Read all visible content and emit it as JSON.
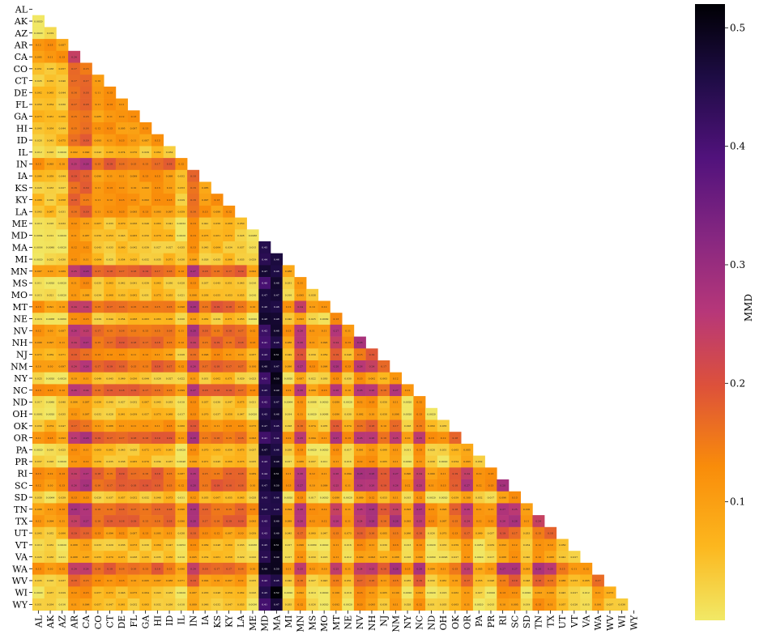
{
  "chart_data": {
    "type": "heatmap",
    "title": "",
    "xlabel": "",
    "ylabel": "",
    "states": [
      "AL",
      "AK",
      "AZ",
      "AR",
      "CA",
      "CO",
      "CT",
      "DE",
      "FL",
      "GA",
      "HI",
      "ID",
      "IL",
      "IN",
      "IA",
      "KS",
      "KY",
      "LA",
      "ME",
      "MD",
      "MA",
      "MI",
      "MN",
      "MS",
      "MO",
      "MT",
      "NE",
      "NV",
      "NH",
      "NJ",
      "NM",
      "NY",
      "NC",
      "ND",
      "OH",
      "OK",
      "OR",
      "PA",
      "PR",
      "RI",
      "SC",
      "SD",
      "TN",
      "TX",
      "UT",
      "VT",
      "VA",
      "WA",
      "WV",
      "WI",
      "WY"
    ],
    "lower_triangle_only": true,
    "colorbar": {
      "label": "MMD",
      "min": 0.0,
      "max": 0.52,
      "ticks": [
        "0.1",
        "0.2",
        "0.3",
        "0.4",
        "0.5"
      ],
      "tick_values": [
        0.1,
        0.2,
        0.3,
        0.4,
        0.5
      ],
      "colormap": "inferno_r"
    },
    "notable_values": {
      "MD_column_max": 0.49,
      "MA_column_max": 0.52,
      "typical_low": 0.01
    }
  }
}
